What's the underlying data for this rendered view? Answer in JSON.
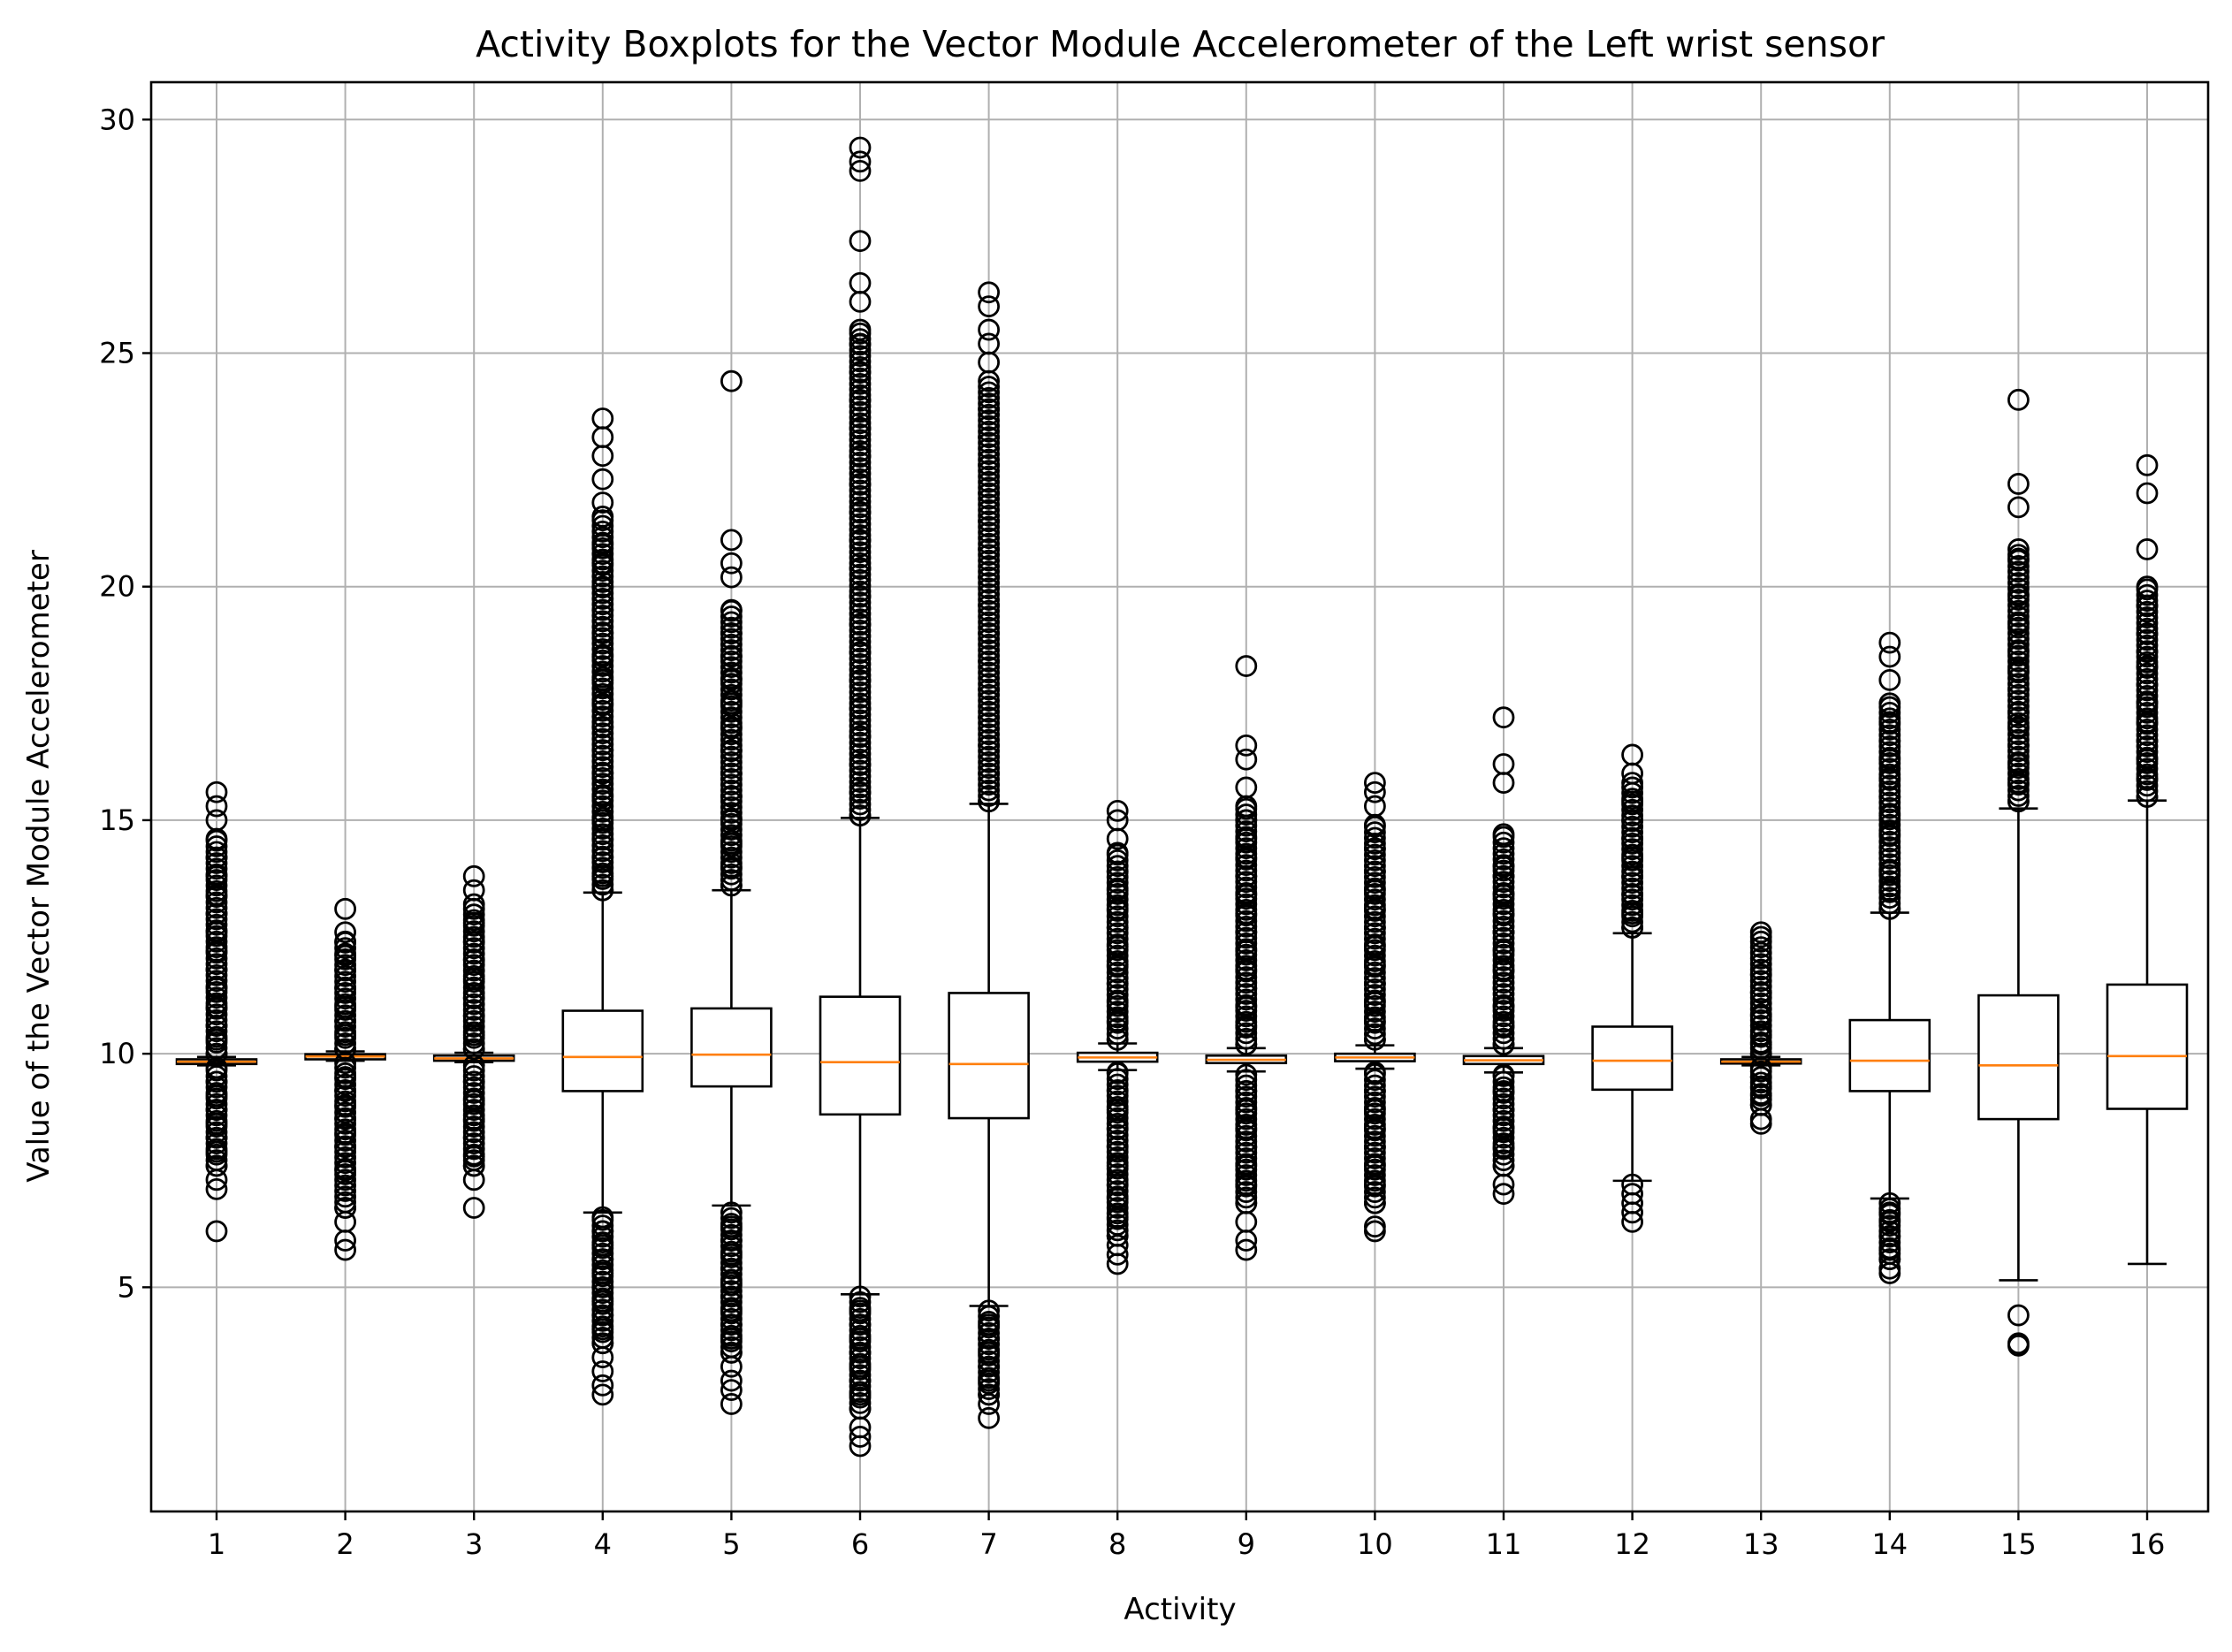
{
  "chart_data": {
    "type": "boxplot",
    "title": "Activity Boxplots for the Vector Module Accelerometer of the Left wrist sensor",
    "xlabel": "Activity",
    "ylabel": "Value of the Vector Module Accelerometer",
    "categories": [
      "1",
      "2",
      "3",
      "4",
      "5",
      "6",
      "7",
      "8",
      "9",
      "10",
      "11",
      "12",
      "13",
      "14",
      "15",
      "16"
    ],
    "ylim": [
      0.2,
      30.8
    ],
    "yticks": [
      5,
      10,
      15,
      20,
      25,
      30
    ],
    "grid": true,
    "colors": {
      "box": "#000000",
      "median": "#ff7f0e",
      "grid": "#b0b0b0"
    },
    "boxes": [
      {
        "label": "1",
        "whislo": 9.75,
        "q1": 9.78,
        "med": 9.83,
        "q3": 9.88,
        "whishi": 9.93,
        "fliers_high": [
          10.0,
          10.3,
          10.6,
          11.0,
          11.4,
          11.8,
          12.2,
          12.6,
          13.0,
          13.4,
          13.8,
          14.2,
          14.6,
          15.0,
          15.3,
          15.6
        ],
        "fliers_low": [
          9.7,
          9.4,
          9.1,
          8.8,
          8.5,
          8.2,
          7.9,
          7.6,
          7.3,
          7.1,
          6.2
        ]
      },
      {
        "label": "2",
        "whislo": 9.85,
        "q1": 9.88,
        "med": 9.94,
        "q3": 9.99,
        "whishi": 10.05,
        "fliers_high": [
          10.1,
          10.4,
          10.7,
          11.0,
          11.4,
          11.8,
          12.1,
          12.4,
          12.6,
          13.1
        ],
        "fliers_low": [
          9.8,
          9.5,
          9.2,
          8.9,
          8.6,
          8.3,
          8.0,
          7.5,
          6.7,
          6.4,
          6.0,
          5.8
        ]
      },
      {
        "label": "3",
        "whislo": 9.82,
        "q1": 9.85,
        "med": 9.9,
        "q3": 9.96,
        "whishi": 10.02,
        "fliers_high": [
          10.1,
          10.4,
          10.8,
          11.2,
          11.6,
          12.0,
          12.4,
          12.8,
          13.2,
          13.5,
          13.8
        ],
        "fliers_low": [
          9.75,
          9.4,
          9.0,
          8.6,
          8.2,
          7.8,
          7.6,
          7.3,
          6.7
        ]
      },
      {
        "label": "4",
        "whislo": 6.6,
        "q1": 9.2,
        "med": 9.93,
        "q3": 10.92,
        "whishi": 13.45,
        "fliers_high": [
          13.5,
          13.8,
          14.2,
          14.6,
          15.0,
          15.5,
          16.0,
          16.5,
          17.0,
          17.5,
          18.0,
          18.5,
          19.0,
          19.5,
          20.0,
          20.5,
          20.9,
          21.5,
          21.8,
          22.3,
          22.8,
          23.2,
          23.6
        ],
        "fliers_low": [
          6.5,
          6.2,
          5.9,
          5.6,
          5.3,
          5.0,
          4.7,
          4.4,
          4.1,
          3.8,
          3.5,
          3.2,
          2.9,
          2.7
        ]
      },
      {
        "label": "5",
        "whislo": 6.75,
        "q1": 9.3,
        "med": 9.98,
        "q3": 10.97,
        "whishi": 13.5,
        "fliers_high": [
          13.6,
          14.0,
          14.5,
          15.0,
          15.5,
          16.0,
          16.5,
          17.0,
          17.5,
          18.0,
          18.5,
          19.0,
          19.5,
          20.2,
          20.5,
          21.0,
          24.4
        ],
        "fliers_low": [
          6.6,
          6.3,
          6.0,
          5.7,
          5.4,
          5.1,
          4.8,
          4.5,
          4.2,
          3.9,
          3.6,
          3.3,
          3.0,
          2.8,
          2.5
        ]
      },
      {
        "label": "6",
        "whislo": 4.85,
        "q1": 8.7,
        "med": 9.82,
        "q3": 11.22,
        "whishi": 15.05,
        "fliers_high": [
          15.1,
          15.6,
          16.2,
          16.8,
          17.4,
          18.0,
          18.6,
          19.2,
          19.8,
          20.4,
          21.0,
          21.6,
          22.2,
          22.8,
          23.4,
          24.0,
          24.6,
          25.2,
          25.5,
          26.1,
          26.5,
          27.4,
          28.9,
          29.1,
          29.4
        ],
        "fliers_low": [
          4.8,
          4.5,
          4.2,
          3.9,
          3.6,
          3.3,
          3.0,
          2.7,
          2.4,
          2.0,
          1.8,
          1.6
        ]
      },
      {
        "label": "7",
        "whislo": 4.6,
        "q1": 8.62,
        "med": 9.78,
        "q3": 11.3,
        "whishi": 15.35,
        "fliers_high": [
          15.4,
          16.0,
          16.6,
          17.2,
          17.8,
          18.4,
          19.0,
          19.6,
          20.2,
          20.8,
          21.4,
          22.0,
          22.6,
          23.2,
          23.8,
          24.4,
          24.8,
          25.2,
          25.5,
          26.0,
          26.3
        ],
        "fliers_low": [
          4.5,
          4.2,
          3.9,
          3.6,
          3.3,
          3.0,
          2.7,
          2.5,
          2.2
        ]
      },
      {
        "label": "8",
        "whislo": 9.65,
        "q1": 9.83,
        "med": 9.92,
        "q3": 10.02,
        "whishi": 10.22,
        "fliers_high": [
          10.3,
          10.7,
          11.1,
          11.5,
          11.9,
          12.3,
          12.7,
          13.1,
          13.5,
          13.9,
          14.3,
          14.6,
          15.0,
          15.2
        ],
        "fliers_low": [
          9.6,
          9.2,
          8.8,
          8.4,
          8.0,
          7.6,
          7.2,
          6.9,
          6.5,
          6.1,
          5.9,
          5.7,
          5.5
        ]
      },
      {
        "label": "9",
        "whislo": 9.62,
        "q1": 9.8,
        "med": 9.87,
        "q3": 9.96,
        "whishi": 10.12,
        "fliers_high": [
          10.2,
          10.6,
          11.0,
          11.4,
          11.8,
          12.2,
          12.6,
          13.0,
          13.4,
          13.8,
          14.2,
          14.6,
          15.0,
          15.3,
          15.7,
          16.3,
          16.6,
          18.3
        ],
        "fliers_low": [
          9.55,
          9.2,
          8.8,
          8.4,
          8.0,
          7.6,
          7.2,
          6.8,
          6.4,
          6.0,
          5.8
        ]
      },
      {
        "label": "10",
        "whislo": 9.68,
        "q1": 9.84,
        "med": 9.92,
        "q3": 10.0,
        "whishi": 10.18,
        "fliers_high": [
          10.3,
          10.7,
          11.1,
          11.5,
          11.9,
          12.3,
          12.7,
          13.1,
          13.5,
          13.9,
          14.4,
          14.9,
          15.3,
          15.6,
          15.8
        ],
        "fliers_low": [
          9.6,
          9.2,
          8.8,
          8.4,
          8.0,
          7.6,
          7.2,
          6.8,
          6.3,
          6.2
        ]
      },
      {
        "label": "11",
        "whislo": 9.6,
        "q1": 9.78,
        "med": 9.86,
        "q3": 9.95,
        "whishi": 10.12,
        "fliers_high": [
          10.2,
          10.6,
          11.0,
          11.4,
          11.8,
          12.2,
          12.6,
          13.0,
          13.4,
          13.8,
          14.0,
          14.7,
          15.8,
          16.2,
          17.2
        ],
        "fliers_low": [
          9.55,
          9.2,
          8.8,
          8.4,
          8.0,
          7.6,
          7.2,
          7.0
        ]
      },
      {
        "label": "12",
        "whislo": 7.28,
        "q1": 9.23,
        "med": 9.85,
        "q3": 10.58,
        "whishi": 12.58,
        "fliers_high": [
          12.7,
          13.0,
          13.4,
          13.8,
          14.2,
          14.6,
          15.0,
          15.4,
          15.8,
          16.0,
          16.4
        ],
        "fliers_low": [
          7.2,
          7.0,
          6.8,
          6.6,
          6.4
        ]
      },
      {
        "label": "13",
        "whislo": 9.75,
        "q1": 9.79,
        "med": 9.83,
        "q3": 9.88,
        "whishi": 9.93,
        "fliers_high": [
          10.0,
          10.2,
          10.4,
          10.8,
          11.3,
          11.7,
          12.5,
          12.6
        ],
        "fliers_low": [
          9.7,
          9.5,
          9.3,
          9.1,
          8.9,
          8.6,
          8.5
        ]
      },
      {
        "label": "14",
        "whislo": 6.9,
        "q1": 9.2,
        "med": 9.85,
        "q3": 10.72,
        "whishi": 13.02,
        "fliers_high": [
          13.1,
          13.5,
          13.9,
          14.3,
          14.7,
          15.1,
          15.5,
          15.9,
          16.3,
          16.7,
          17.1,
          17.5,
          18.0,
          18.5,
          18.8
        ],
        "fliers_low": [
          6.8,
          6.6,
          6.4,
          6.1,
          5.8,
          5.6,
          5.4,
          5.3
        ]
      },
      {
        "label": "15",
        "whislo": 5.15,
        "q1": 8.6,
        "med": 9.75,
        "q3": 11.25,
        "whishi": 15.25,
        "fliers_high": [
          15.4,
          15.8,
          16.2,
          16.6,
          17.0,
          17.3,
          17.8,
          18.2,
          18.6,
          19.2,
          19.8,
          20.6,
          20.8,
          21.7,
          22.2,
          24.0
        ],
        "fliers_low": [
          4.4,
          3.8,
          3.75
        ]
      },
      {
        "label": "16",
        "whislo": 5.5,
        "q1": 8.82,
        "med": 9.95,
        "q3": 11.48,
        "whishi": 15.42,
        "fliers_high": [
          15.5,
          15.9,
          16.3,
          16.7,
          17.1,
          17.5,
          17.9,
          18.3,
          18.6,
          19.0,
          19.6,
          20.0,
          20.8,
          22.0,
          22.6
        ],
        "fliers_low": []
      }
    ]
  }
}
